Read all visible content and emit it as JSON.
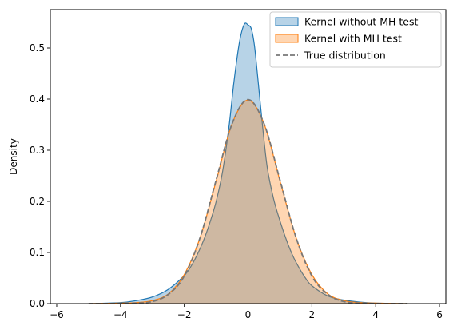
{
  "chart_data": {
    "type": "area",
    "title": "",
    "xlabel": "",
    "ylabel": "Density",
    "xlim": [
      -6.2,
      6.2
    ],
    "ylim": [
      0,
      0.575
    ],
    "xticks": [
      -6,
      -4,
      -2,
      0,
      2,
      4,
      6
    ],
    "xtick_labels": [
      "−6",
      "−4",
      "−2",
      "0",
      "2",
      "4",
      "6"
    ],
    "yticks": [
      0.0,
      0.1,
      0.2,
      0.3,
      0.4,
      0.5
    ],
    "ytick_labels": [
      "0.0",
      "0.1",
      "0.2",
      "0.3",
      "0.4",
      "0.5"
    ],
    "grid": false,
    "legend_position": "top-right",
    "series": [
      {
        "name": "Kernel without MH test",
        "style": "filled-kde",
        "fill": "#1f77b4",
        "edge": "#1f77b4",
        "x": [
          -5.0,
          -4.0,
          -3.5,
          -3.0,
          -2.5,
          -2.0,
          -1.8,
          -1.6,
          -1.4,
          -1.2,
          -1.0,
          -0.8,
          -0.6,
          -0.45,
          -0.3,
          -0.2,
          -0.1,
          0.0,
          0.1,
          0.2,
          0.3,
          0.45,
          0.6,
          0.8,
          1.0,
          1.2,
          1.4,
          1.6,
          1.8,
          2.0,
          2.5,
          3.0,
          3.5,
          4.0,
          5.0
        ],
        "y": [
          0.0,
          0.002,
          0.006,
          0.013,
          0.028,
          0.055,
          0.072,
          0.095,
          0.123,
          0.158,
          0.2,
          0.258,
          0.345,
          0.43,
          0.5,
          0.532,
          0.548,
          0.545,
          0.538,
          0.505,
          0.445,
          0.35,
          0.267,
          0.205,
          0.162,
          0.125,
          0.094,
          0.07,
          0.05,
          0.035,
          0.015,
          0.007,
          0.003,
          0.001,
          0.0
        ]
      },
      {
        "name": "Kernel with MH test",
        "style": "filled-kde",
        "fill": "#ff7f0e",
        "edge": "#ff7f0e",
        "x": [
          -5.0,
          -4.0,
          -3.5,
          -3.0,
          -2.5,
          -2.0,
          -1.5,
          -1.0,
          -0.5,
          0.0,
          0.5,
          1.0,
          1.5,
          2.0,
          2.5,
          3.0,
          3.5,
          4.0,
          5.0
        ],
        "y": [
          0.0,
          0.001,
          0.002,
          0.006,
          0.019,
          0.057,
          0.13,
          0.24,
          0.352,
          0.398,
          0.352,
          0.24,
          0.13,
          0.057,
          0.019,
          0.006,
          0.002,
          0.001,
          0.0
        ]
      },
      {
        "name": "True distribution",
        "style": "dashed-line",
        "color": "#777777",
        "x": [
          -5.0,
          -4.0,
          -3.5,
          -3.0,
          -2.5,
          -2.0,
          -1.5,
          -1.0,
          -0.5,
          0.0,
          0.5,
          1.0,
          1.5,
          2.0,
          2.5,
          3.0,
          3.5,
          4.0,
          5.0
        ],
        "y": [
          0.0,
          0.0001,
          0.001,
          0.004,
          0.018,
          0.054,
          0.13,
          0.242,
          0.352,
          0.399,
          0.352,
          0.242,
          0.13,
          0.054,
          0.018,
          0.004,
          0.001,
          0.0001,
          0.0
        ]
      }
    ]
  }
}
